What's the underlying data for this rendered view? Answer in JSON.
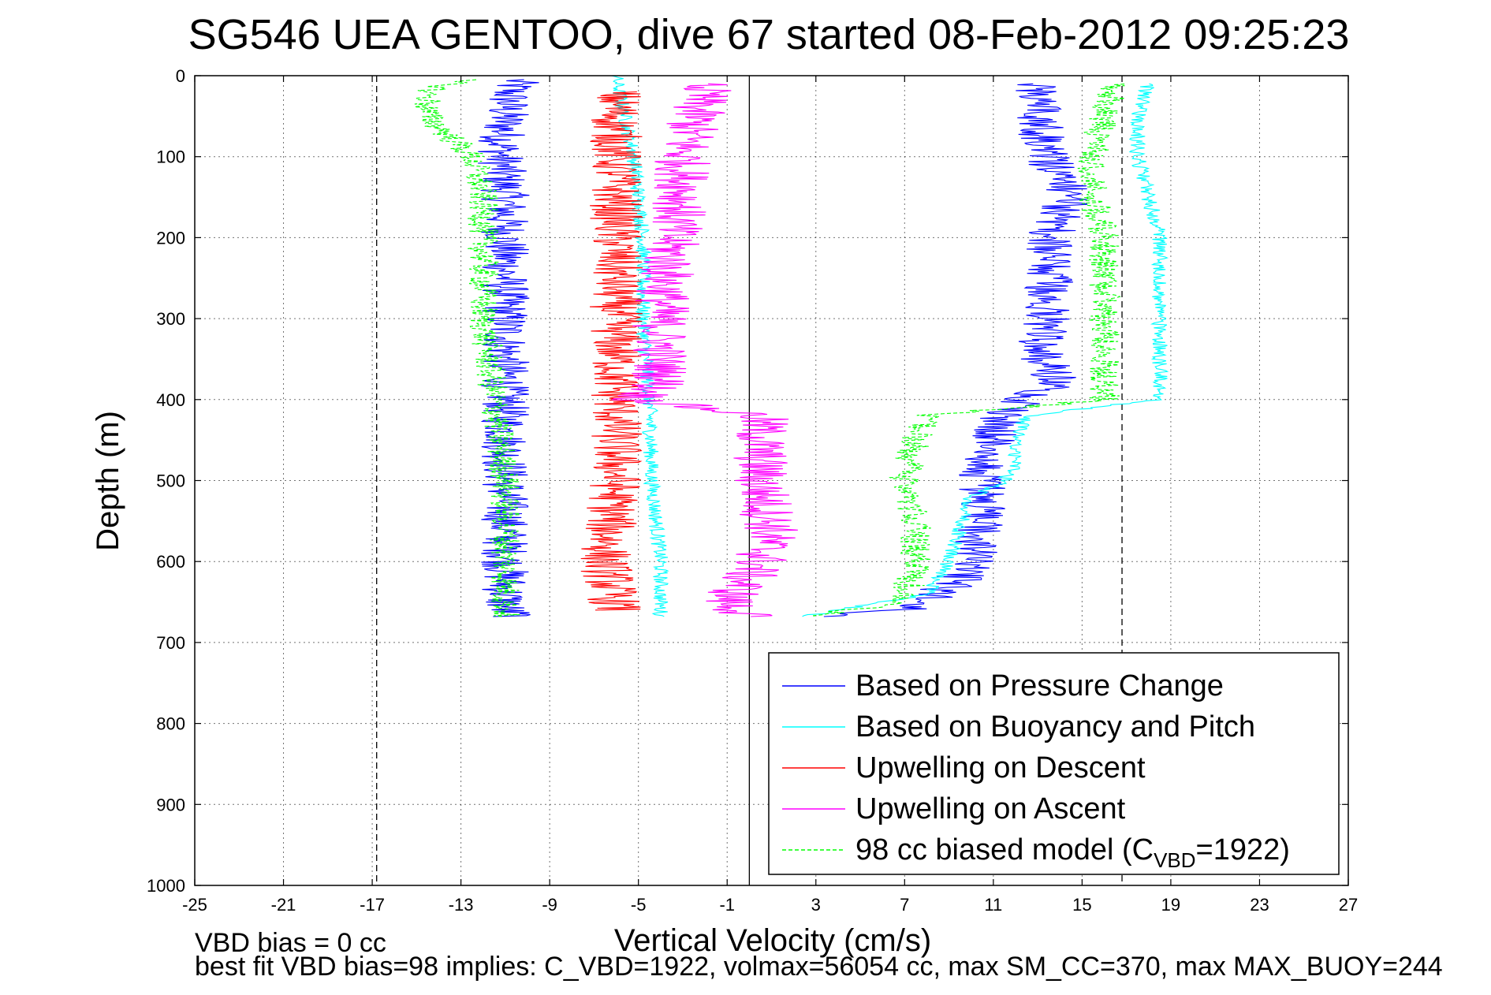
{
  "chart_data": {
    "type": "line",
    "title": "SG546 UEA GENTOO, dive 67 started 08-Feb-2012 09:25:23",
    "xlabel": "Vertical Velocity (cm/s)",
    "ylabel": "Depth (m)",
    "xlim": [
      -25,
      27
    ],
    "ylim": [
      0,
      1000
    ],
    "y_reversed": true,
    "grid": true,
    "legend_position": "lower-right",
    "xticks": [
      -25,
      -21,
      -17,
      -13,
      -9,
      -5,
      -1,
      3,
      7,
      11,
      15,
      19,
      23,
      27
    ],
    "xtick_labels": [
      "-25",
      "-21",
      "-17",
      "-13",
      "-9",
      "-5",
      "-1",
      "3",
      "7",
      "11",
      "15",
      "19",
      "23",
      "27"
    ],
    "yticks": [
      0,
      100,
      200,
      300,
      400,
      500,
      600,
      700,
      800,
      900,
      1000
    ],
    "ytick_labels": [
      "0",
      "100",
      "200",
      "300",
      "400",
      "500",
      "600",
      "700",
      "800",
      "900",
      "1000"
    ],
    "reference_lines": [
      {
        "x": -16.8,
        "style": "dashed"
      },
      {
        "x": 16.8,
        "style": "dashed"
      },
      {
        "x": 0,
        "style": "solid"
      }
    ],
    "series": [
      {
        "name": "Based on Pressure Change",
        "color": "#0000ff",
        "descent": {
          "depth": [
            5,
            20,
            50,
            100,
            150,
            200,
            300,
            400,
            500,
            600,
            660,
            668
          ],
          "velocity": [
            -10.5,
            -10.8,
            -11.0,
            -11.2,
            -11.0,
            -11.0,
            -11.0,
            -11.0,
            -11.0,
            -11.0,
            -11.0,
            -10.5
          ]
        },
        "ascent": {
          "depth": [
            668,
            660,
            640,
            620,
            600,
            550,
            500,
            450,
            420,
            400,
            380,
            340,
            300,
            250,
            200,
            150,
            100,
            50,
            10
          ],
          "velocity": [
            2.5,
            7.0,
            8.5,
            9.5,
            10.0,
            10.5,
            10.5,
            11.0,
            11.5,
            12.5,
            14.0,
            13.0,
            13.5,
            13.5,
            13.5,
            14.5,
            13.5,
            13.0,
            13.0
          ]
        }
      },
      {
        "name": "Based on Buoyancy and Pitch",
        "color": "#00ffff",
        "descent": {
          "depth": [
            0,
            5,
            100,
            200,
            300,
            400,
            500,
            600,
            660,
            668
          ],
          "velocity": [
            -6.0,
            -6.0,
            -5.2,
            -4.8,
            -4.8,
            -4.5,
            -4.4,
            -4.0,
            -4.0,
            -4.0
          ]
        },
        "ascent": {
          "depth": [
            668,
            640,
            600,
            560,
            520,
            500,
            480,
            450,
            420,
            400,
            300,
            200,
            100,
            50,
            10
          ],
          "velocity": [
            2.5,
            8.0,
            9.0,
            9.5,
            10.0,
            11.5,
            12.0,
            12.0,
            12.5,
            18.5,
            18.5,
            18.5,
            17.5,
            17.5,
            18.0
          ]
        }
      },
      {
        "name": "Upwelling on Descent",
        "color": "#ff0000",
        "depth": [
          20,
          100,
          200,
          300,
          400,
          500,
          600,
          660
        ],
        "velocity": [
          -6.0,
          -6.0,
          -6.0,
          -6.0,
          -6.0,
          -6.0,
          -6.5,
          -6.0
        ]
      },
      {
        "name": "Upwelling on Ascent",
        "color": "#ff00ff",
        "depth": [
          10,
          100,
          150,
          200,
          300,
          380,
          400,
          420,
          500,
          560,
          600,
          650,
          668
        ],
        "velocity": [
          -2.0,
          -3.0,
          -3.0,
          -3.5,
          -4.0,
          -4.0,
          -5.0,
          0.5,
          0.5,
          1.0,
          0.5,
          -1.0,
          0.0
        ]
      },
      {
        "name": "98 cc biased model (C",
        "name_subscript": "VBD",
        "name_suffix": "=1922)",
        "color": "#00ff00",
        "style": "dashed",
        "descent": {
          "depth": [
            5,
            20,
            50,
            100,
            150,
            200,
            300,
            400,
            500,
            600,
            668
          ],
          "velocity": [
            -13.0,
            -14.5,
            -14.5,
            -12.5,
            -12.0,
            -12.0,
            -12.0,
            -11.5,
            -11.0,
            -11.0,
            -11.0
          ]
        },
        "ascent": {
          "depth": [
            668,
            650,
            600,
            550,
            500,
            450,
            420,
            400,
            300,
            200,
            150,
            100,
            50,
            10
          ],
          "velocity": [
            2.5,
            7.0,
            7.5,
            7.5,
            7.0,
            7.5,
            8.0,
            16.0,
            16.0,
            16.0,
            15.5,
            15.5,
            16.0,
            16.5
          ]
        }
      }
    ]
  },
  "footer": {
    "line1": "VBD bias = 0 cc",
    "line2": "best fit VBD bias=98 implies: C_VBD=1922, volmax=56054 cc, max SM_CC=370, max MAX_BUOY=244"
  }
}
